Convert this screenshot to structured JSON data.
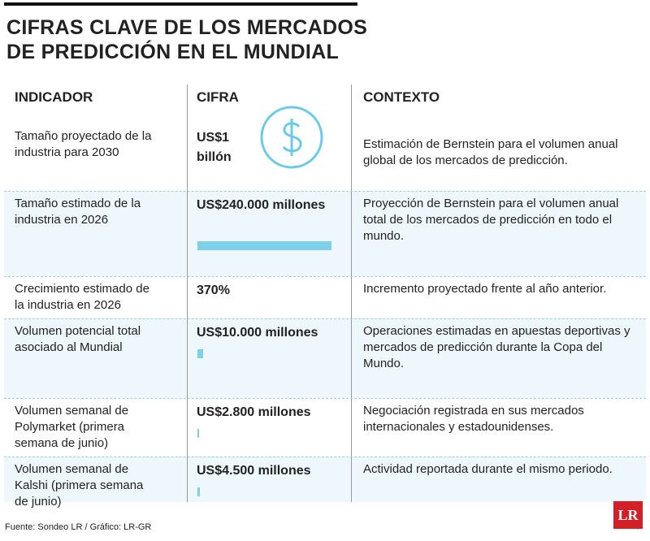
{
  "header": {
    "title_line1": "CIFRAS CLAVE DE LOS MERCADOS",
    "title_line2": "DE PREDICCIÓN EN EL MUNDIAL"
  },
  "table": {
    "columns": [
      "INDICADOR",
      "CIFRA",
      "CONTEXTO"
    ],
    "rows": [
      {
        "indicador": "Tamaño proyectado de la industria para 2030",
        "cifra": "US$1 billón",
        "contexto": "Estimación de Bernstein para el volumen anual global de los mercados de predicción."
      },
      {
        "indicador": "Tamaño estimado de la industria en 2026",
        "cifra": {
          "value": 240000,
          "label": "US$240.000 millones"
        },
        "contexto": "Proyección de Bernstein para el volumen anual total de los mercados de predicción en todo el mundo."
      },
      {
        "indicador": "Crecimiento estimado de la industria en 2026",
        "cifra": "370%",
        "contexto": "Incremento proyectado frente al año anterior."
      },
      {
        "indicador": "Volumen potencial total asociado al Mundial",
        "cifra": {
          "value": 10000,
          "label": "US$10.000 millones"
        },
        "contexto": "Operaciones estimadas en apuestas deportivas y mercados de predicción durante la Copa del Mundo."
      },
      {
        "indicador": "Volumen semanal de Polymarket (primera semana de junio)",
        "cifra": {
          "value": 2800,
          "label": "US$2.800 millones"
        },
        "contexto": "Negociación registrada en sus mercados internacionales y estadounidenses."
      },
      {
        "indicador": "Volumen semanal de Kalshi (primera semana de junio)",
        "cifra": {
          "value": 4500,
          "label": "US$4.500 millones"
        },
        "contexto": "Actividad reportada durante el mismo periodo."
      }
    ]
  },
  "footer": {
    "source": "Fuente: Sondeo LR / Gráfico: LR-GR",
    "logo": "LR"
  }
}
